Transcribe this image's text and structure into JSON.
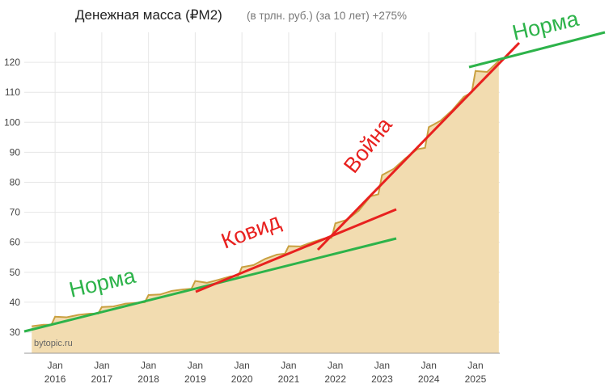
{
  "chart_data": {
    "type": "area",
    "title": "Денежная масса (₽M2)",
    "subtitle": "(в трлн. руб.) (за 10 лет) +275%",
    "watermark": "bytopic.ru",
    "x": [
      2015.5,
      2015.75,
      2015.92,
      2016.0,
      2016.25,
      2016.5,
      2016.75,
      2016.92,
      2017.0,
      2017.25,
      2017.5,
      2017.75,
      2017.92,
      2018.0,
      2018.25,
      2018.5,
      2018.75,
      2018.92,
      2019.0,
      2019.25,
      2019.5,
      2019.75,
      2019.92,
      2020.0,
      2020.25,
      2020.5,
      2020.75,
      2020.92,
      2021.0,
      2021.25,
      2021.5,
      2021.75,
      2021.92,
      2022.0,
      2022.25,
      2022.5,
      2022.75,
      2022.92,
      2023.0,
      2023.25,
      2023.5,
      2023.75,
      2023.92,
      2024.0,
      2024.25,
      2024.5,
      2024.75,
      2024.92,
      2025.0,
      2025.25,
      2025.5
    ],
    "values": [
      32,
      32.5,
      32.5,
      35.2,
      35,
      35.8,
      36.2,
      36.2,
      38.4,
      38.6,
      39.5,
      39.8,
      40,
      42.4,
      42.6,
      43.8,
      44.3,
      44.5,
      47.1,
      46.5,
      47.5,
      48.6,
      48.8,
      51.7,
      52.4,
      54.5,
      55.9,
      56.2,
      58.7,
      58.6,
      60,
      61.2,
      61.5,
      66.3,
      67.5,
      70.5,
      75.3,
      76,
      82.4,
      84.5,
      88,
      91,
      91.5,
      98.4,
      100.5,
      104,
      108.5,
      110,
      117.1,
      116.8,
      120.5
    ],
    "color": "#c9a040",
    "fill": "#f2dcb0",
    "xlim": [
      2015.34,
      2025.52
    ],
    "xticks": [
      {
        "value": 2016,
        "label": [
          "Jan",
          "2016"
        ]
      },
      {
        "value": 2017,
        "label": [
          "Jan",
          "2017"
        ]
      },
      {
        "value": 2018,
        "label": [
          "Jan",
          "2018"
        ]
      },
      {
        "value": 2019,
        "label": [
          "Jan",
          "2019"
        ]
      },
      {
        "value": 2020,
        "label": [
          "Jan",
          "2020"
        ]
      },
      {
        "value": 2021,
        "label": [
          "Jan",
          "2021"
        ]
      },
      {
        "value": 2022,
        "label": [
          "Jan",
          "2022"
        ]
      },
      {
        "value": 2023,
        "label": [
          "Jan",
          "2023"
        ]
      },
      {
        "value": 2024,
        "label": [
          "Jan",
          "2024"
        ]
      },
      {
        "value": 2025,
        "label": [
          "Jan",
          "2025"
        ]
      }
    ],
    "ylim": [
      23,
      130
    ],
    "yticks": [
      30,
      40,
      50,
      60,
      70,
      80,
      90,
      100,
      110,
      120
    ],
    "grid": true,
    "annotations": [
      "Норма",
      "Ковид",
      "Война",
      "Норма"
    ]
  }
}
